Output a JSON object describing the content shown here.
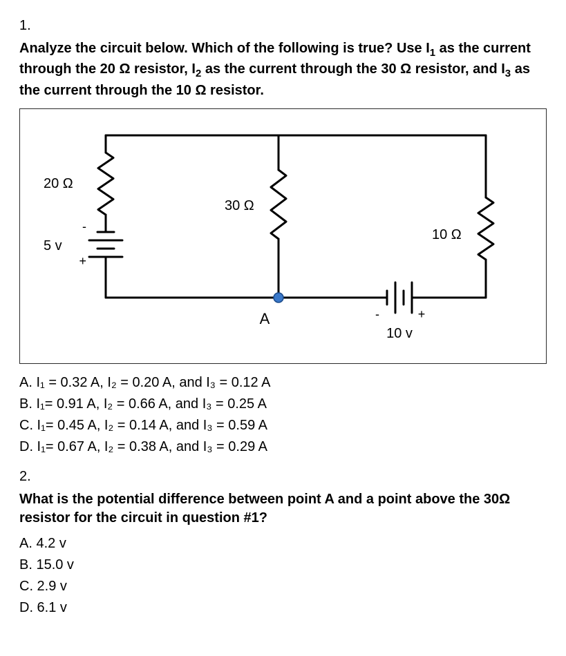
{
  "q1": {
    "number": "1.",
    "text_line1": "Analyze the circuit below. Which of the following is true? Use I",
    "text_sub1": "1",
    "text_cont1": " as the current through the 20 Ω resistor, I",
    "text_sub2": "2",
    "text_cont2": " as the current through the 30 Ω resistor, and I",
    "text_sub3": "3",
    "text_cont3": " as the current through the 10 Ω resistor.",
    "options": {
      "A": "A.   I₁ = 0.32 A, I₂ = 0.20 A, and I₃ = 0.12 A",
      "B": "B.   I₁= 0.91 A, I₂ = 0.66 A, and I₃ = 0.25 A",
      "C": "C.   I₁= 0.45 A, I₂ = 0.14 A, and I₃ = 0.59 A",
      "D": "D.   I₁= 0.67 A, I₂ = 0.38 A, and I₃ = 0.29 A"
    }
  },
  "q2": {
    "number": "2.",
    "text": "What is the potential difference between point A and a point above the 30Ω resistor for the circuit in question #1?",
    "options": {
      "A": "A.  4.2 v",
      "B": "B.  15.0 v",
      "C": "C.  2.9 v",
      "D": "D.  6.1 v"
    }
  },
  "circuit": {
    "r1_label": "20 Ω",
    "r2_label": "30 Ω",
    "r3_label": "10 Ω",
    "v1_label": "5 v",
    "v2_label": "10 v",
    "nodeA_label": "A",
    "stroke": "#000000",
    "stroke_width": 3,
    "font_size": 20,
    "dot_color": "#3a78c9",
    "plus1": "+",
    "minus1": "-",
    "plus2": "+",
    "minus2": "-"
  }
}
